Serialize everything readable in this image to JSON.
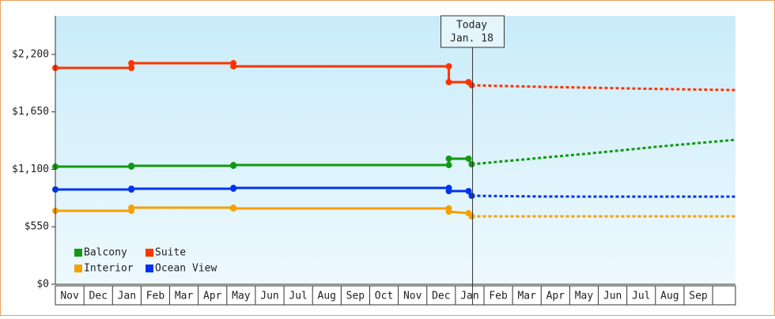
{
  "chart_data": {
    "type": "line",
    "x": [
      0,
      2.66,
      2.66,
      6.23,
      6.23,
      13.77,
      13.77,
      14.46,
      14.57,
      17,
      19,
      21,
      23.8
    ],
    "series": [
      {
        "name": "Balcony",
        "color": "#119911",
        "values": [
          1126,
          1126,
          1134,
          1134,
          1141,
          1141,
          1202,
          1202,
          1149,
          null,
          null,
          null,
          null
        ],
        "forecast": [
          null,
          null,
          null,
          null,
          null,
          null,
          null,
          null,
          1149,
          1210,
          1260,
          1315,
          1383
        ]
      },
      {
        "name": "Suite",
        "color": "#ff3300",
        "values": [
          2071,
          2071,
          2116,
          2116,
          2086,
          2086,
          1935,
          1935,
          1905,
          null,
          null,
          null,
          null
        ],
        "forecast": [
          null,
          null,
          null,
          null,
          null,
          null,
          null,
          null,
          1905,
          1890,
          1880,
          1870,
          1859
        ]
      },
      {
        "name": "Interior",
        "color": "#f5a000",
        "values": [
          703,
          703,
          733,
          733,
          726,
          726,
          695,
          680,
          650,
          null,
          null,
          null,
          null
        ],
        "forecast": [
          null,
          null,
          null,
          null,
          null,
          null,
          null,
          null,
          650,
          650,
          650,
          650,
          650
        ]
      },
      {
        "name": "Ocean View",
        "color": "#0033ee",
        "values": [
          907,
          907,
          915,
          915,
          922,
          922,
          892,
          892,
          847,
          null,
          null,
          null,
          null
        ],
        "forecast": [
          null,
          null,
          null,
          null,
          null,
          null,
          null,
          null,
          847,
          840,
          839,
          839,
          839
        ]
      }
    ],
    "xlim": [
      0,
      23.8
    ],
    "xticks": [
      {
        "value": 0.5,
        "label": "Nov"
      },
      {
        "value": 1.5,
        "label": "Dec"
      },
      {
        "value": 2.5,
        "label": "Jan"
      },
      {
        "value": 3.5,
        "label": "Feb"
      },
      {
        "value": 4.5,
        "label": "Mar"
      },
      {
        "value": 5.5,
        "label": "Apr"
      },
      {
        "value": 6.5,
        "label": "May"
      },
      {
        "value": 7.5,
        "label": "Jun"
      },
      {
        "value": 8.5,
        "label": "Jul"
      },
      {
        "value": 9.5,
        "label": "Aug"
      },
      {
        "value": 10.5,
        "label": "Sep"
      },
      {
        "value": 11.5,
        "label": "Oct"
      },
      {
        "value": 12.5,
        "label": "Nov"
      },
      {
        "value": 13.5,
        "label": "Dec"
      },
      {
        "value": 14.5,
        "label": "Jan"
      },
      {
        "value": 15.5,
        "label": "Feb"
      },
      {
        "value": 16.5,
        "label": "Mar"
      },
      {
        "value": 17.5,
        "label": "Apr"
      },
      {
        "value": 18.5,
        "label": "May"
      },
      {
        "value": 19.5,
        "label": "Jun"
      },
      {
        "value": 20.5,
        "label": "Jul"
      },
      {
        "value": 21.5,
        "label": "Aug"
      },
      {
        "value": 22.5,
        "label": "Sep"
      }
    ],
    "ylim": [
      0,
      2570
    ],
    "yticks": [
      {
        "value": 0,
        "label": "$0"
      },
      {
        "value": 550,
        "label": "$550"
      },
      {
        "value": 1100,
        "label": "$1,100"
      },
      {
        "value": 1650,
        "label": "$1,650"
      },
      {
        "value": 2200,
        "label": "$2,200"
      }
    ],
    "annotation": {
      "x": 14.6,
      "lines": [
        "Today",
        "Jan. 18"
      ]
    },
    "legend": "bottom-left"
  }
}
